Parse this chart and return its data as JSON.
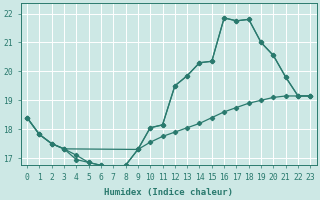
{
  "xlabel": "Humidex (Indice chaleur)",
  "bg_color": "#cde8e5",
  "grid_color": "#ffffff",
  "line_color": "#2a7a6e",
  "xlim": [
    -0.5,
    23.5
  ],
  "ylim": [
    16.75,
    22.35
  ],
  "yticks": [
    17,
    18,
    19,
    20,
    21,
    22
  ],
  "xticks": [
    0,
    1,
    2,
    3,
    4,
    5,
    6,
    7,
    8,
    9,
    10,
    11,
    12,
    13,
    14,
    15,
    16,
    17,
    18,
    19,
    20,
    21,
    22,
    23
  ],
  "line1_x": [
    0,
    1,
    2,
    3,
    4,
    5,
    6,
    7,
    8,
    9,
    10,
    11,
    12,
    13,
    14,
    15,
    16,
    17,
    18,
    19,
    20,
    21,
    22,
    23
  ],
  "line1_y": [
    18.4,
    17.82,
    17.5,
    17.32,
    16.95,
    16.85,
    16.75,
    16.68,
    16.75,
    17.3,
    18.05,
    18.15,
    19.5,
    19.85,
    20.3,
    20.35,
    21.85,
    21.75,
    21.8,
    21.0,
    20.55,
    19.8,
    19.15,
    19.15
  ],
  "line2_x": [
    0,
    1,
    2,
    3,
    9,
    10,
    11,
    12,
    13,
    14,
    15,
    16,
    17,
    18,
    19,
    20,
    21,
    22,
    23
  ],
  "line2_y": [
    18.4,
    17.82,
    17.5,
    17.32,
    17.3,
    18.05,
    18.15,
    19.5,
    19.85,
    20.3,
    20.35,
    21.85,
    21.75,
    21.8,
    21.0,
    20.55,
    19.8,
    19.15,
    19.15
  ],
  "line3_x": [
    0,
    1,
    2,
    3,
    4,
    5,
    6,
    7,
    8,
    9,
    10,
    11,
    12,
    13,
    14,
    15,
    16,
    17,
    18,
    19,
    20,
    21,
    22,
    23
  ],
  "line3_y": [
    18.4,
    17.82,
    17.5,
    17.32,
    17.1,
    16.85,
    16.75,
    16.65,
    16.75,
    17.3,
    17.55,
    17.75,
    17.9,
    18.05,
    18.2,
    18.4,
    18.6,
    18.75,
    18.9,
    19.0,
    19.1,
    19.15,
    19.15,
    19.15
  ]
}
